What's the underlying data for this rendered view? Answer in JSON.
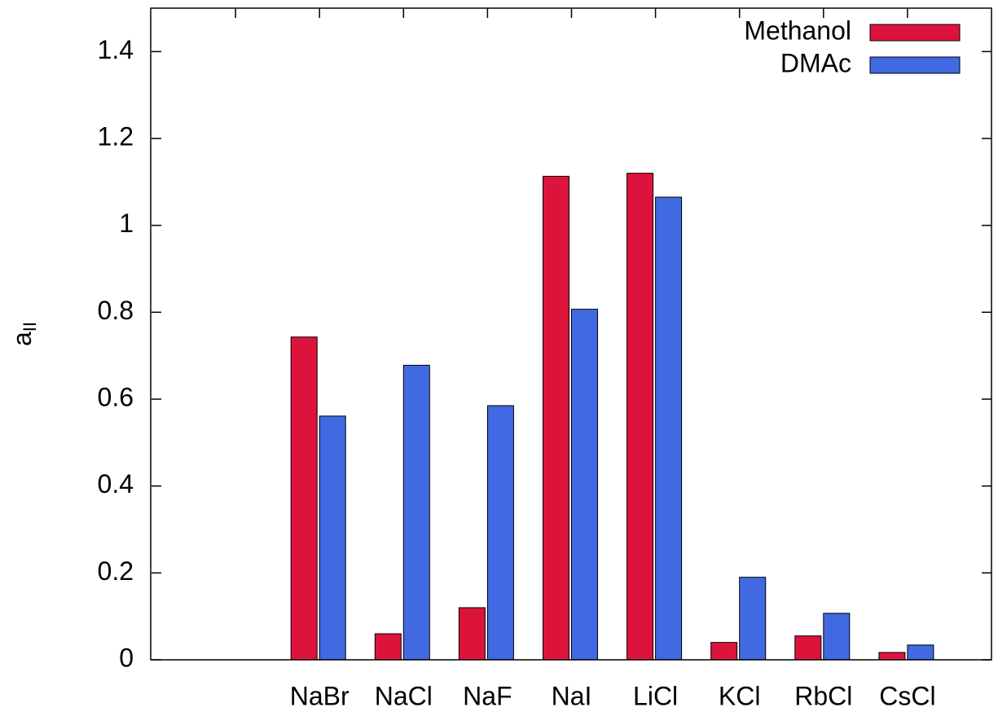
{
  "chart_data": {
    "type": "bar",
    "ylabel": {
      "text": "a",
      "subscript": "II"
    },
    "categories": [
      null,
      null,
      "NaBr",
      "NaCl",
      "NaF",
      "NaI",
      "LiCl",
      "KCl",
      "RbCl",
      "CsCl"
    ],
    "series": [
      {
        "name": "Methanol",
        "color": "#dc143c",
        "values": [
          null,
          null,
          0.743,
          0.06,
          0.12,
          1.113,
          1.12,
          0.04,
          0.055,
          0.017
        ]
      },
      {
        "name": "DMAc",
        "color": "#4169e1",
        "values": [
          null,
          null,
          0.561,
          0.678,
          0.585,
          0.807,
          1.065,
          0.19,
          0.107,
          0.034
        ]
      }
    ],
    "ylim": [
      0,
      1.5
    ],
    "yticks": [
      0,
      0.2,
      0.4,
      0.6,
      0.8,
      1,
      1.2,
      1.4
    ],
    "legend": "top-right"
  }
}
